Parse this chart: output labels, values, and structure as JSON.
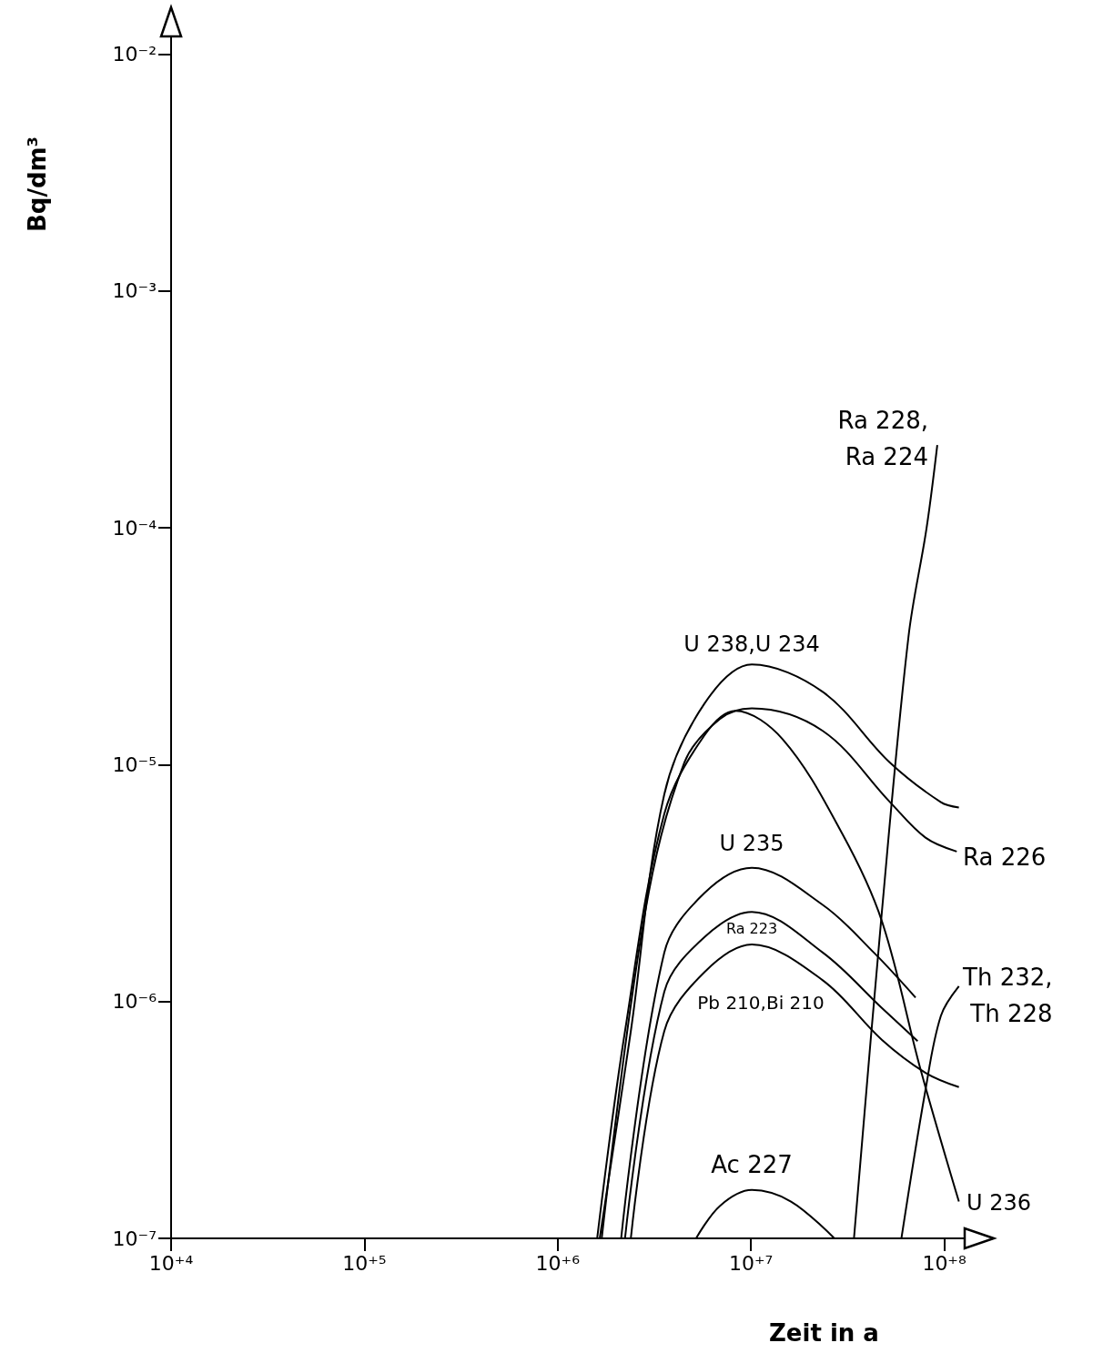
{
  "chart_data": {
    "type": "line",
    "xlabel": "Zeit in a",
    "ylabel": "Bq/dm³",
    "log": "xy",
    "grid": false,
    "legend": false,
    "marker": "none",
    "line_style": "solid",
    "xlim": [
      10000,
      150000000
    ],
    "ylim": [
      1e-07,
      0.013
    ],
    "xticks": [
      {
        "value": 10000,
        "label": "10⁺⁴"
      },
      {
        "value": 100000,
        "label": "10⁺⁵"
      },
      {
        "value": 1000000,
        "label": "10⁺⁶"
      },
      {
        "value": 10000000,
        "label": "10⁺⁷"
      },
      {
        "value": 100000000,
        "label": "10⁺⁸"
      }
    ],
    "yticks": [
      {
        "value": 1e-07,
        "label": "10⁻⁷"
      },
      {
        "value": 1e-06,
        "label": "10⁻⁶"
      },
      {
        "value": 1e-05,
        "label": "10⁻⁵"
      },
      {
        "value": 0.0001,
        "label": "10⁻⁴"
      },
      {
        "value": 0.001,
        "label": "10⁻³"
      },
      {
        "value": 0.01,
        "label": "10⁻²"
      }
    ],
    "series": [
      {
        "name": "U 238,U 234",
        "color": "#000000",
        "x": [
          1650000,
          2390000,
          3560000,
          5740000,
          10100000,
          23500000,
          52400000,
          96000000,
          119000000
        ],
        "values": [
          1e-07,
          7.5e-07,
          7.5e-06,
          1.81e-05,
          2.65e-05,
          2.03e-05,
          1.02e-05,
          6.95e-06,
          6.6e-06
        ]
      },
      {
        "name": "U 236",
        "color": "#000000",
        "x": [
          1600000,
          2230000,
          3560000,
          5740000,
          8300000,
          14600000,
          29700000,
          47500000,
          75700000,
          119000000
        ],
        "values": [
          1e-07,
          7.5e-07,
          6.2e-06,
          1.33e-05,
          1.69e-05,
          1.28e-05,
          5.1e-06,
          2.19e-06,
          5.1e-07,
          1.43e-07
        ]
      },
      {
        "name": "U 235",
        "color": "#000000",
        "x": [
          2130000,
          3560000,
          5740000,
          10100000,
          23500000,
          43200000,
          71000000
        ],
        "values": [
          1e-07,
          1.61e-06,
          2.87e-06,
          3.67e-06,
          2.56e-06,
          1.61e-06,
          1.04e-06
        ]
      },
      {
        "name": "Ra 223",
        "color": "#000000",
        "x": [
          2230000,
          3560000,
          5740000,
          10100000,
          23500000,
          47500000,
          72800000
        ],
        "values": [
          1e-07,
          1.1e-06,
          1.87e-06,
          2.39e-06,
          1.61e-06,
          9.4e-07,
          6.8e-07
        ]
      },
      {
        "name": "Pb 210,Bi 210",
        "color": "#000000",
        "x": [
          2390000,
          3560000,
          5740000,
          10100000,
          23500000,
          47500000,
          80000000,
          119000000
        ],
        "values": [
          1e-07,
          7.5e-07,
          1.33e-06,
          1.74e-06,
          1.23e-06,
          6.9e-07,
          5e-07,
          4.35e-07
        ]
      },
      {
        "name": "Ra 226",
        "color": "#000000",
        "x": [
          1690000,
          2830000,
          4520000,
          6900000,
          10100000,
          23500000,
          52400000,
          80000000,
          116000000
        ],
        "values": [
          1e-07,
          2.37e-06,
          1.02e-05,
          1.56e-05,
          1.73e-05,
          1.39e-05,
          6.95e-06,
          4.92e-06,
          4.3e-06
        ]
      },
      {
        "name": "Ra 228, Ra 224",
        "color": "#000000",
        "x": [
          34100000,
          47500000,
          65300000,
          81000000,
          92000000
        ],
        "values": [
          1e-07,
          2.37e-06,
          3.48e-05,
          0.0001,
          0.000224
        ]
      },
      {
        "name": "Th 232, Th 228",
        "color": "#000000",
        "x": [
          60000000,
          79800000,
          96000000,
          119000000
        ],
        "values": [
          1e-07,
          4.2e-07,
          8.7e-07,
          1.16e-06
        ]
      },
      {
        "name": "Ac 227",
        "color": "#000000",
        "x": [
          5200000,
          6900000,
          10100000,
          16100000,
          27000000
        ],
        "values": [
          1e-07,
          1.37e-07,
          1.6e-07,
          1.43e-07,
          1e-07
        ]
      }
    ]
  }
}
